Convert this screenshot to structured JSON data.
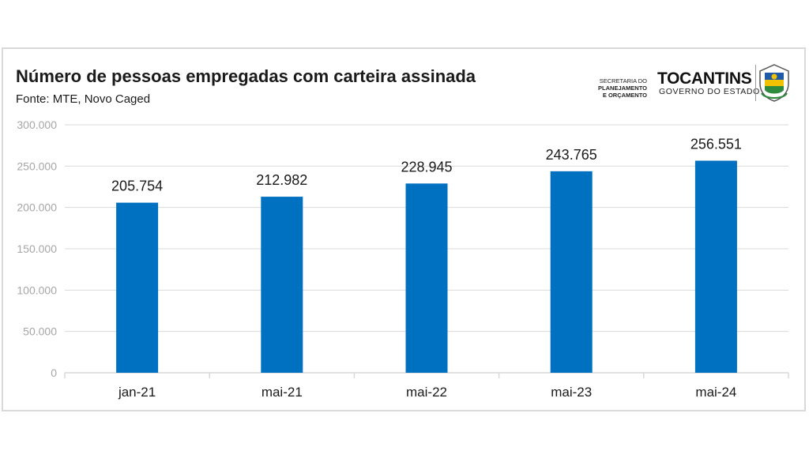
{
  "header": {
    "title": "Número de pessoas empregadas com carteira assinada",
    "source": "Fonte: MTE, Novo Caged"
  },
  "logo": {
    "secretaria_prefix": "SECRETARIA DO",
    "secretaria_bold_1": "PLANEJAMENTO",
    "secretaria_bold_2": "E ORÇAMENTO",
    "brand": "TOCANTINS",
    "tagline": "GOVERNO DO ESTADO",
    "crest_icon": "state-coat-of-arms-icon"
  },
  "colors": {
    "bar": "#0070c0",
    "grid": "#d9d9d9",
    "tick_y": "#a6a6a6",
    "text": "#1a1a1a"
  },
  "chart_data": {
    "type": "bar",
    "categories": [
      "jan-21",
      "mai-21",
      "mai-22",
      "mai-23",
      "mai-24"
    ],
    "values": [
      205754,
      212982,
      228945,
      243765,
      256551
    ],
    "value_labels": [
      "205.754",
      "212.982",
      "228.945",
      "243.765",
      "256.551"
    ],
    "y_ticks": [
      "0",
      "50.000",
      "100.000",
      "150.000",
      "200.000",
      "250.000",
      "300.000"
    ],
    "ylim": [
      0,
      300000
    ],
    "grid": true,
    "legend": "none",
    "title": "Número de pessoas empregadas com carteira assinada",
    "xlabel": "",
    "ylabel": ""
  }
}
